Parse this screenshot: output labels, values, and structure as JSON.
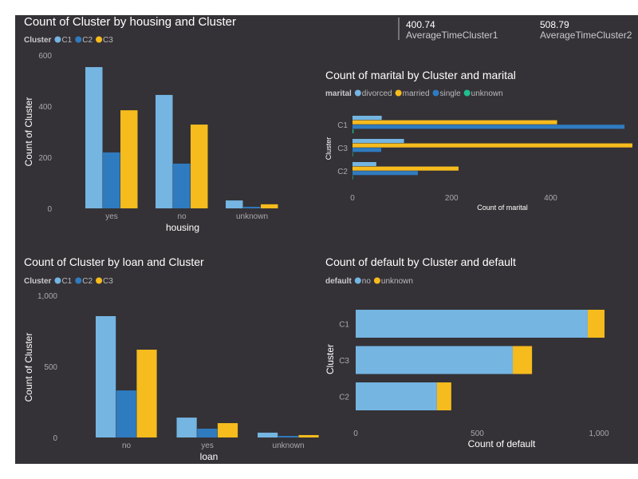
{
  "kpis": [
    {
      "value": "400.74",
      "label": "AverageTimeCluster1"
    },
    {
      "value": "508.79",
      "label": "AverageTimeCluster2"
    }
  ],
  "colors": {
    "C1": "#74b5e2",
    "C2": "#2f7bc0",
    "C3": "#f6bb1d",
    "divorced": "#74b5e2",
    "married": "#f6bb1d",
    "single": "#2f7bc0",
    "unknown_marital": "#1fbf8f",
    "no": "#74b5e2",
    "unknown": "#f6bb1d",
    "background": "#343236"
  },
  "chart_data": [
    {
      "type": "bar",
      "title": "Count of Cluster by housing and Cluster",
      "legend_title": "Cluster",
      "legend_position": "top-left",
      "categories": [
        "yes",
        "no",
        "unknown"
      ],
      "series": [
        {
          "name": "C1",
          "values": [
            553,
            444,
            31
          ]
        },
        {
          "name": "C2",
          "values": [
            219,
            175,
            6
          ]
        },
        {
          "name": "C3",
          "values": [
            384,
            328,
            16
          ]
        }
      ],
      "xlabel": "housing",
      "ylabel": "Count of Cluster",
      "ylim": [
        0,
        600
      ],
      "yticks": [
        "0",
        "200",
        "400",
        "600"
      ],
      "ytick_values": [
        0,
        200,
        400,
        600
      ]
    },
    {
      "type": "bar",
      "orientation": "horizontal",
      "title": "Count of marital by Cluster and marital",
      "legend_title": "marital",
      "legend_position": "top-left",
      "categories": [
        "C1",
        "C3",
        "C2"
      ],
      "series": [
        {
          "name": "divorced",
          "values": [
            59,
            104,
            48
          ]
        },
        {
          "name": "married",
          "values": [
            413,
            565,
            214
          ]
        },
        {
          "name": "single",
          "values": [
            549,
            58,
            132
          ]
        },
        {
          "name": "unknown",
          "values": [
            2,
            1,
            1
          ]
        }
      ],
      "xlabel": "Count of marital",
      "ylabel": "Cluster",
      "xlim": [
        0,
        565
      ],
      "xticks": [
        "0",
        "200",
        "400"
      ],
      "xtick_values": [
        0,
        200,
        400
      ]
    },
    {
      "type": "bar",
      "title": "Count of Cluster by loan and Cluster",
      "legend_title": "Cluster",
      "legend_position": "top-left",
      "categories": [
        "no",
        "yes",
        "unknown"
      ],
      "series": [
        {
          "name": "C1",
          "values": [
            854,
            140,
            34
          ]
        },
        {
          "name": "C2",
          "values": [
            331,
            62,
            11
          ]
        },
        {
          "name": "C3",
          "values": [
            618,
            101,
            17
          ]
        }
      ],
      "xlabel": "loan",
      "ylabel": "Count of Cluster",
      "ylim": [
        0,
        1000
      ],
      "yticks": [
        "0",
        "500",
        "1,000"
      ],
      "ytick_values": [
        0,
        500,
        1000
      ]
    },
    {
      "type": "bar",
      "orientation": "horizontal",
      "stacked": true,
      "title": "Count of default by Cluster and default",
      "legend_title": "default",
      "legend_position": "top-left",
      "categories": [
        "C1",
        "C3",
        "C2"
      ],
      "series": [
        {
          "name": "no",
          "values": [
            954,
            646,
            334
          ]
        },
        {
          "name": "unknown",
          "values": [
            69,
            79,
            59
          ]
        }
      ],
      "xlabel": "Count of default",
      "ylabel": "Cluster",
      "xlim": [
        0,
        1000
      ],
      "xticks": [
        "0",
        "500",
        "1,000"
      ],
      "xtick_values": [
        0,
        500,
        1000
      ]
    }
  ]
}
